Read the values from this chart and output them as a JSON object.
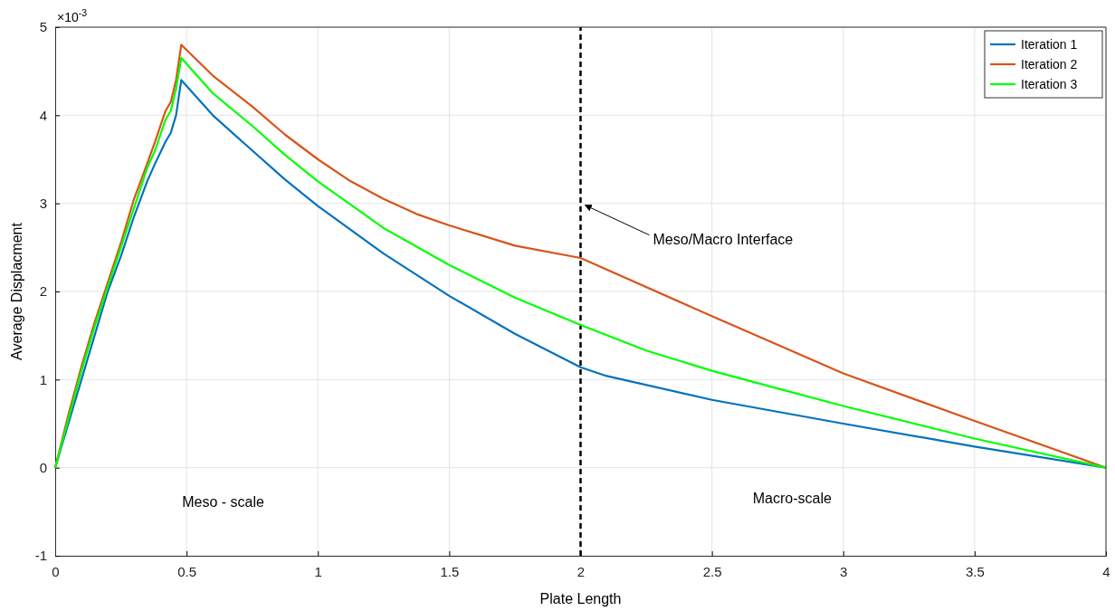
{
  "chart_data": {
    "type": "line",
    "xlabel": "Plate Length",
    "ylabel": "Average Displacment",
    "xlim": [
      0,
      4
    ],
    "xticks": [
      0,
      0.5,
      1,
      1.5,
      2,
      2.5,
      3,
      3.5,
      4
    ],
    "ylim": [
      -1,
      5
    ],
    "yticks": [
      -1,
      0,
      1,
      2,
      3,
      4,
      5
    ],
    "grid": true,
    "legend": "top right",
    "line_style": "solid",
    "marker": "none",
    "series": [
      {
        "name": "Iteration 1",
        "color": "#0072bd",
        "x": [
          0,
          0.05,
          0.1,
          0.15,
          0.2,
          0.25,
          0.3,
          0.35,
          0.38,
          0.42,
          0.44,
          0.46,
          0.48,
          0.6,
          0.75,
          0.875,
          1,
          1.25,
          1.5,
          1.75,
          2,
          2.1,
          2.5,
          3,
          3.5,
          4
        ],
        "values": [
          0,
          0.5,
          1.0,
          1.5,
          2.0,
          2.4,
          2.85,
          3.25,
          3.45,
          3.7,
          3.8,
          4.0,
          4.4,
          4.0,
          3.6,
          3.27,
          2.97,
          2.43,
          1.95,
          1.52,
          1.14,
          1.04,
          0.77,
          0.5,
          0.24,
          0
        ]
      },
      {
        "name": "Iteration 2",
        "color": "#d95319",
        "x": [
          0,
          0.05,
          0.1,
          0.15,
          0.2,
          0.25,
          0.3,
          0.35,
          0.38,
          0.42,
          0.44,
          0.46,
          0.48,
          0.6,
          0.75,
          0.875,
          1,
          1.125,
          1.25,
          1.375,
          1.5,
          1.75,
          2,
          2.5,
          3,
          3.5,
          4
        ],
        "values": [
          0,
          0.6,
          1.15,
          1.65,
          2.1,
          2.55,
          3.05,
          3.45,
          3.7,
          4.05,
          4.15,
          4.4,
          4.8,
          4.45,
          4.1,
          3.78,
          3.5,
          3.25,
          3.05,
          2.88,
          2.75,
          2.52,
          2.38,
          1.72,
          1.07,
          0.53,
          0
        ]
      },
      {
        "name": "Iteration 3",
        "color": "#00ff00",
        "x": [
          0,
          0.05,
          0.1,
          0.15,
          0.2,
          0.25,
          0.3,
          0.35,
          0.38,
          0.42,
          0.44,
          0.46,
          0.48,
          0.6,
          0.75,
          0.875,
          1,
          1.25,
          1.5,
          1.75,
          2,
          2.25,
          2.5,
          2.75,
          3,
          3.5,
          4
        ],
        "values": [
          0,
          0.55,
          1.1,
          1.6,
          2.05,
          2.5,
          2.95,
          3.4,
          3.6,
          3.95,
          4.05,
          4.3,
          4.65,
          4.25,
          3.88,
          3.55,
          3.25,
          2.72,
          2.3,
          1.93,
          1.62,
          1.33,
          1.1,
          0.9,
          0.7,
          0.33,
          0
        ]
      }
    ],
    "ref_lines": [
      {
        "axis": "x",
        "value": 2,
        "color": "#000000",
        "line_style": "dashed"
      }
    ],
    "annotations": [
      "×10$^{-3}$",
      {
        "text": "Meso/Macro Interface",
        "x": 2,
        "y": 3.0
      },
      "Meso - scale",
      "Macro-scale"
    ]
  }
}
